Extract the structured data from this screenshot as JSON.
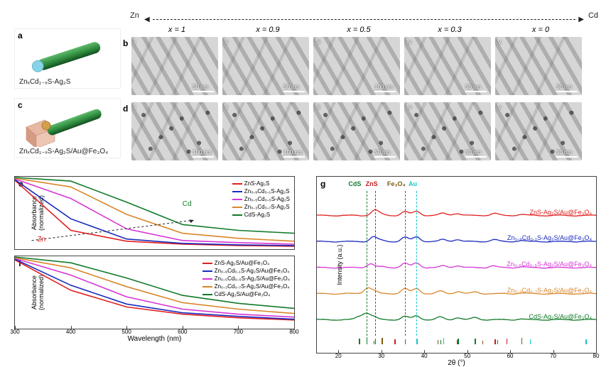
{
  "axis": {
    "left_label": "Zn",
    "right_label": "Cd"
  },
  "x_headers": [
    "x = 1",
    "x = 0.9",
    "x = 0.5",
    "x = 0.3",
    "x = 0"
  ],
  "schematics": {
    "a": {
      "panel": "a",
      "formula": "ZnₓCd₁₋ₓS-Ag₂S",
      "rod_color": "#2e8b3e",
      "tip_color": "#89d3e6"
    },
    "c": {
      "panel": "c",
      "formula": "ZnₓCd₁₋ₓS-Ag₂S/Au@Fe₃O₄",
      "rod_color": "#2e8b3e",
      "au_color": "#d4a14a",
      "cube_color": "#e7b8a2"
    }
  },
  "tem": {
    "b": {
      "panel": "b",
      "roman": [
        "i",
        "ii",
        "iii",
        "iv",
        "v"
      ],
      "scalebars": [
        "50 nm",
        "50 nm",
        "100 nm",
        "50 nm",
        "50 nm"
      ]
    },
    "d": {
      "panel": "d",
      "roman": [
        "i",
        "ii",
        "iii",
        "iv",
        "v"
      ],
      "scalebars": [
        "100 nm",
        "100 nm",
        "50 nm",
        "50 nm",
        "50 nm"
      ]
    },
    "bg": "#d6d6d6"
  },
  "abs_spectra": {
    "ylabel_e": "Absorbance\n(normalized)",
    "ylabel_f": "Absorbance\n(normalized)",
    "xlabel": "Wavelength (nm)",
    "xlim": [
      300,
      800
    ],
    "xticks": [
      300,
      400,
      500,
      600,
      700,
      800
    ],
    "panels": {
      "e": {
        "panel": "e",
        "zn_label": "Zn",
        "cd_label": "Cd",
        "series": [
          {
            "name": "ZnS-Ag₂S",
            "color": "#e02020",
            "y": [
              0.95,
              0.26,
              0.11,
              0.07,
              0.05,
              0.04
            ]
          },
          {
            "name": "Zn₀․₉Cd₀․₁S-Ag₂S",
            "color": "#1a2bbd",
            "y": [
              0.96,
              0.42,
              0.14,
              0.08,
              0.06,
              0.05
            ]
          },
          {
            "name": "Zn₀․₅Cd₀․₅S-Ag₂S",
            "color": "#d635d6",
            "y": [
              0.97,
              0.7,
              0.28,
              0.12,
              0.09,
              0.07
            ]
          },
          {
            "name": "Zn₀․₃Cd₀․₇S-Ag₂S",
            "color": "#d9862a",
            "y": [
              0.98,
              0.86,
              0.48,
              0.22,
              0.15,
              0.11
            ]
          },
          {
            "name": "CdS-Ag₂S",
            "color": "#117a2a",
            "y": [
              0.99,
              0.94,
              0.65,
              0.34,
              0.26,
              0.22
            ]
          }
        ]
      },
      "f": {
        "panel": "f",
        "series": [
          {
            "name": "ZnS-Ag₂S/Au@Fe₃O₄",
            "color": "#e02020",
            "y": [
              0.95,
              0.53,
              0.3,
              0.2,
              0.15,
              0.12
            ]
          },
          {
            "name": "Zn₀․₉Cd₀․₁S-Ag₂S/Au@Fe₃O₄",
            "color": "#1a2bbd",
            "y": [
              0.96,
              0.6,
              0.34,
              0.22,
              0.17,
              0.13
            ]
          },
          {
            "name": "Zn₀․₅Cd₀․₅S-Ag₂S/Au@Fe₃O₄",
            "color": "#d635d6",
            "y": [
              0.97,
              0.74,
              0.44,
              0.27,
              0.2,
              0.16
            ]
          },
          {
            "name": "Zn₀․₃Cd₀․₇S-Ag₂S/Au@Fe₃O₄",
            "color": "#d9862a",
            "y": [
              0.98,
              0.84,
              0.58,
              0.36,
              0.27,
              0.21
            ]
          },
          {
            "name": "CdS-Ag₂S/Au@Fe₃O₄",
            "color": "#117a2a",
            "y": [
              0.99,
              0.91,
              0.7,
              0.46,
              0.35,
              0.28
            ]
          }
        ]
      }
    }
  },
  "xrd": {
    "panel": "g",
    "xlabel": "2θ (°)",
    "ylabel": "Intensity (a.u.)",
    "xlim": [
      15,
      80
    ],
    "xticks": [
      20,
      30,
      40,
      50,
      60,
      70,
      80
    ],
    "ref_labels": [
      {
        "text": "CdS",
        "color": "#117a2a",
        "x": 24
      },
      {
        "text": "ZnS",
        "color": "#c42020",
        "x": 28
      },
      {
        "text": "Fe₃O₄",
        "color": "#7a5a10",
        "x": 33
      },
      {
        "text": "Au",
        "color": "#19c5c5",
        "x": 38
      }
    ],
    "vlines": [
      {
        "x": 26.5,
        "color": "#117a2a"
      },
      {
        "x": 28.5,
        "color": "#c42020"
      },
      {
        "x": 35.5,
        "color": "#7a5a10"
      },
      {
        "x": 38.2,
        "color": "#19c5c5"
      }
    ],
    "ref_ticks": {
      "CdS": {
        "color": "#117a2a",
        "x": [
          24.8,
          26.5,
          28.2,
          43.7,
          47.8,
          51.8
        ]
      },
      "ZnS": {
        "color": "#c42020",
        "x": [
          28.5,
          33.1,
          47.5,
          56.4,
          59.1
        ]
      },
      "Fe3O4": {
        "color": "#7a5a10",
        "x": [
          30.1,
          35.5,
          43.1,
          53.5,
          57.0,
          62.6
        ]
      },
      "Au": {
        "color": "#19c5c5",
        "x": [
          38.2,
          44.4,
          64.6,
          77.6
        ]
      }
    },
    "traces": [
      {
        "name": "ZnS-Ag₂S/Au@Fe₃O₄",
        "color": "#e02020",
        "offset": 0.82,
        "peaks": [
          [
            28.5,
            0.25
          ],
          [
            30.1,
            0.05
          ],
          [
            35.5,
            0.18
          ],
          [
            38.2,
            0.2
          ],
          [
            44.4,
            0.1
          ],
          [
            47.5,
            0.1
          ],
          [
            56.4,
            0.1
          ],
          [
            62.6,
            0.05
          ]
        ]
      },
      {
        "name": "Zn₀․₉Cd₀․₁S-Ag₂S/Au@Fe₃O₄",
        "color": "#1a2bbd",
        "offset": 0.64,
        "peaks": [
          [
            28.2,
            0.22
          ],
          [
            30.1,
            0.05
          ],
          [
            35.5,
            0.2
          ],
          [
            38.2,
            0.22
          ],
          [
            44.4,
            0.09
          ],
          [
            47.6,
            0.1
          ],
          [
            56.3,
            0.09
          ],
          [
            62.6,
            0.05
          ]
        ]
      },
      {
        "name": "Zn₀․₅Cd₀․₅S-Ag₂S/Au@Fe₃O₄",
        "color": "#d635d6",
        "offset": 0.46,
        "peaks": [
          [
            27.5,
            0.18
          ],
          [
            30.1,
            0.04
          ],
          [
            35.5,
            0.2
          ],
          [
            38.2,
            0.22
          ],
          [
            44.4,
            0.08
          ],
          [
            47.7,
            0.09
          ],
          [
            56.0,
            0.08
          ],
          [
            62.6,
            0.04
          ]
        ]
      },
      {
        "name": "Zn₀․₃Cd₀․₇S-Ag₂S/Au@Fe₃O₄",
        "color": "#d9862a",
        "offset": 0.28,
        "peaks": [
          [
            26.8,
            0.26
          ],
          [
            28.3,
            0.12
          ],
          [
            35.5,
            0.24
          ],
          [
            38.2,
            0.24
          ],
          [
            43.8,
            0.12
          ],
          [
            47.9,
            0.1
          ],
          [
            51.9,
            0.08
          ],
          [
            62.6,
            0.04
          ]
        ]
      },
      {
        "name": "CdS-Ag₂S/Au@Fe₃O₄",
        "color": "#117a2a",
        "offset": 0.1,
        "peaks": [
          [
            24.8,
            0.14
          ],
          [
            26.5,
            0.3
          ],
          [
            28.2,
            0.14
          ],
          [
            35.5,
            0.16
          ],
          [
            38.2,
            0.18
          ],
          [
            43.7,
            0.12
          ],
          [
            47.8,
            0.1
          ],
          [
            51.8,
            0.1
          ],
          [
            62.6,
            0.04
          ]
        ]
      }
    ]
  }
}
